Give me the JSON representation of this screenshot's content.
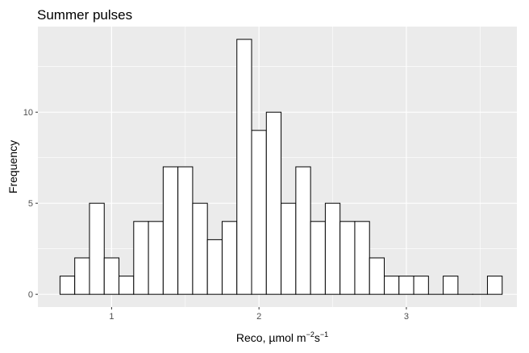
{
  "chart_data": {
    "type": "bar",
    "title": "Summer pulses",
    "xlabel": {
      "prefix": "Reco, ",
      "unit_mu": "µ",
      "unit_mol": "mol m",
      "exp_m": "−2",
      "unit_s": "s",
      "exp_s": "−1"
    },
    "ylabel": "Frequency",
    "xlim": [
      0.5,
      3.75
    ],
    "ylim": [
      -0.7,
      14.7
    ],
    "x_ticks": [
      1,
      2,
      3
    ],
    "x_tick_labels": [
      "1",
      "2",
      "3"
    ],
    "y_ticks": [
      0,
      5,
      10
    ],
    "y_tick_labels": [
      "0",
      "5",
      "10"
    ],
    "grid": true,
    "bin_width": 0.1,
    "bin_centers": [
      0.7,
      0.8,
      0.9,
      1.0,
      1.1,
      1.2,
      1.3,
      1.4,
      1.5,
      1.6,
      1.7,
      1.8,
      1.9,
      2.0,
      2.1,
      2.2,
      2.3,
      2.4,
      2.5,
      2.6,
      2.7,
      2.8,
      2.9,
      3.0,
      3.1,
      3.2,
      3.3,
      3.4,
      3.5,
      3.6
    ],
    "counts": [
      1,
      2,
      5,
      2,
      1,
      4,
      4,
      7,
      7,
      5,
      3,
      4,
      14,
      9,
      10,
      5,
      7,
      4,
      5,
      4,
      4,
      2,
      1,
      1,
      1,
      0,
      1,
      0,
      0,
      1
    ],
    "colors": {
      "panel": "#ebebeb",
      "grid_major": "#ffffff",
      "bar_fill": "#ffffff",
      "bar_stroke": "#000000",
      "tick": "#333333"
    }
  }
}
